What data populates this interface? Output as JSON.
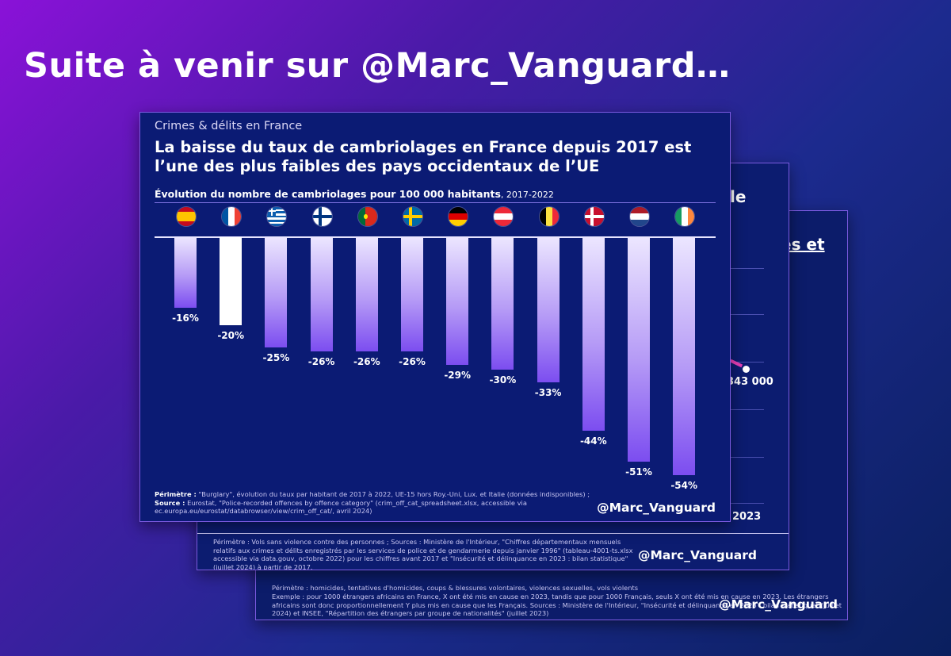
{
  "headline": "Suite à venir sur @Marc_Vanguard…",
  "back_card_3": {
    "footnote_line1": "Périmètre : homicides, tentatives d'homicides, coups & blessures volontaires, violences sexuelles, vols violents",
    "footnote_line2": "Exemple : pour 1000 étrangers africains en France, X ont été mis en cause en 2023, tandis que pour 1000 Français, seuls X ont été mis en cause en 2023. Les étrangers africains sont donc proportionnellement Y plus mis en cause que les Français. Sources : Ministère de l'Intérieur, \"Insécurité et délinquance en 2023 : bilan statistique\" (juillet 2024) et INSEE, \"Répartition des étrangers par groupe de nationalités\" (juillet 2023)",
    "title_fragment": "es et",
    "watermark": "@Marc_Vanguard"
  },
  "back_card_2": {
    "title_fragment": "le",
    "value_label": "343 000",
    "axis_label": "2023",
    "footnote": "Périmètre : Vols sans violence contre des personnes ; Sources : Ministère de l'Intérieur, \"Chiffres départementaux mensuels relatifs aux crimes et délits enregistrés par les services de police et de gendarmerie depuis janvier 1996\" (tableau-4001-ts.xlsx accessible via data.gouv, octobre 2022) pour les chiffres avant 2017 et \"Insécurité et délinquance en 2023 : bilan statistique\" (juillet 2024) à partir de 2017.",
    "watermark": "@Marc_Vanguard"
  },
  "front_card": {
    "breadcrumb": "Crimes & délits en France",
    "title": "La baisse du taux de cambriolages en France depuis 2017 est l’une des plus faibles des pays occidentaux de l’UE",
    "subtitle_main": "Évolution du nombre de cambriolages pour 100 000 habitants",
    "subtitle_period": ", 2017-2022",
    "footnote_perimetre_label": "Périmètre :",
    "footnote_perimetre": " \"Burglary\", évolution du taux par habitant de 2017 à 2022, UE-15 hors Roy.-Uni, Lux. et Italie (données indisponibles) ;",
    "footnote_source_label": "Source :",
    "footnote_source": " Eurostat, \"Police-recorded offences by offence category\" (crim_off_cat_spreadsheet.xlsx, accessible via ec.europa.eu/eurostat/databrowser/view/crim_off_cat/, avril 2024)",
    "watermark": "@Marc_Vanguard"
  },
  "colors": {
    "highlight_bar": "#ffffff",
    "bar_top": "#ece6ff",
    "bar_bottom": "#7c4df0",
    "card_bg": "#0b1b74",
    "border": "#7b5ae0"
  },
  "chart_data": {
    "type": "bar",
    "categories": [
      "ES",
      "FR",
      "GR",
      "FI",
      "PT",
      "SE",
      "DE",
      "AT",
      "BE",
      "DK",
      "NL",
      "IE"
    ],
    "flag_icons": [
      "flag-spain-icon",
      "flag-france-icon",
      "flag-greece-icon",
      "flag-finland-icon",
      "flag-portugal-icon",
      "flag-sweden-icon",
      "flag-germany-icon",
      "flag-austria-icon",
      "flag-belgium-icon",
      "flag-denmark-icon",
      "flag-netherlands-icon",
      "flag-ireland-icon"
    ],
    "values": [
      -16,
      -20,
      -25,
      -26,
      -26,
      -26,
      -29,
      -30,
      -33,
      -44,
      -51,
      -54
    ],
    "labels": [
      "-16%",
      "-20%",
      "-25%",
      "-26%",
      "-26%",
      "-26%",
      "-29%",
      "-30%",
      "-33%",
      "-44%",
      "-51%",
      "-54%"
    ],
    "highlight_index": 1,
    "title": "La baisse du taux de cambriolages en France depuis 2017 est l’une des plus faibles des pays occidentaux de l’UE",
    "xlabel": "",
    "ylabel": "",
    "ylim": [
      -54,
      0
    ],
    "grid": false,
    "legend": "none"
  }
}
